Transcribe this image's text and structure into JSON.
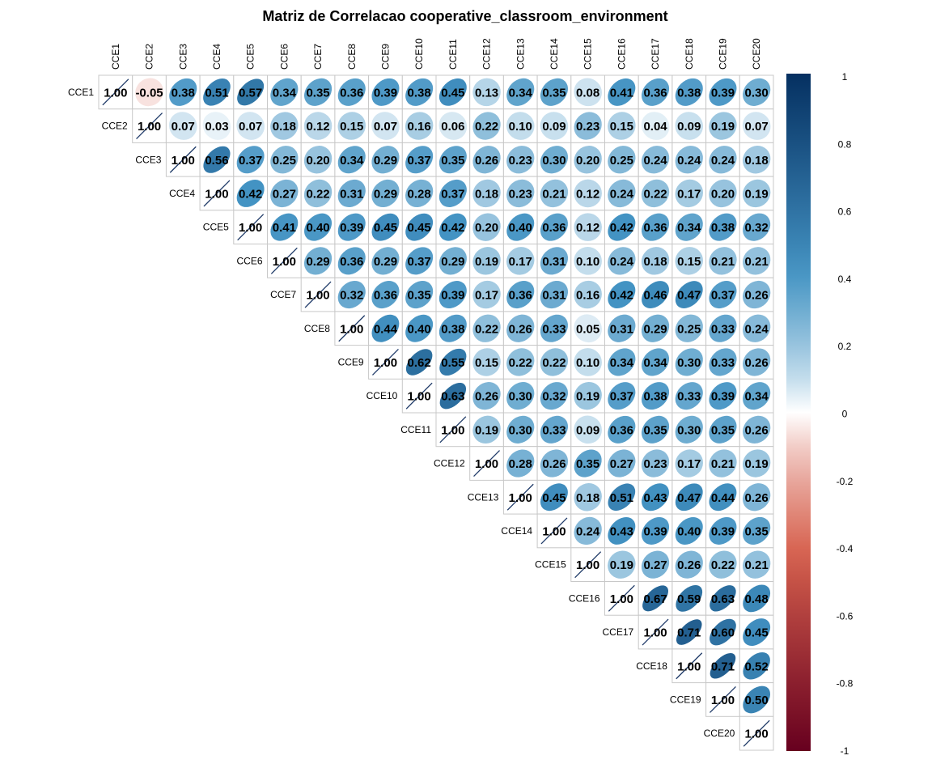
{
  "chart_data": {
    "type": "heatmap",
    "subtype": "correlation-matrix-upper-ellipse",
    "title": "Matriz de Correlacao  cooperative_classroom_environment",
    "variables": [
      "CCE1",
      "CCE2",
      "CCE3",
      "CCE4",
      "CCE5",
      "CCE6",
      "CCE7",
      "CCE8",
      "CCE9",
      "CCE10",
      "CCE11",
      "CCE12",
      "CCE13",
      "CCE14",
      "CCE15",
      "CCE16",
      "CCE17",
      "CCE18",
      "CCE19",
      "CCE20"
    ],
    "matrix_upper": [
      [
        "1.00",
        "-0.05",
        "0.38",
        "0.51",
        "0.57",
        "0.34",
        "0.35",
        "0.36",
        "0.39",
        "0.38",
        "0.45",
        "0.13",
        "0.34",
        "0.35",
        "0.08",
        "0.41",
        "0.36",
        "0.38",
        "0.39",
        "0.30"
      ],
      [
        "1.00",
        "0.07",
        "0.03",
        "0.07",
        "0.18",
        "0.12",
        "0.15",
        "0.07",
        "0.16",
        "0.06",
        "0.22",
        "0.10",
        "0.09",
        "0.23",
        "0.15",
        "0.04",
        "0.09",
        "0.19",
        "0.07"
      ],
      [
        "1.00",
        "0.56",
        "0.37",
        "0.25",
        "0.20",
        "0.34",
        "0.29",
        "0.37",
        "0.35",
        "0.26",
        "0.23",
        "0.30",
        "0.20",
        "0.25",
        "0.24",
        "0.24",
        "0.24",
        "0.18"
      ],
      [
        "1.00",
        "0.42",
        "0.27",
        "0.22",
        "0.31",
        "0.29",
        "0.28",
        "0.37",
        "0.18",
        "0.23",
        "0.21",
        "0.12",
        "0.24",
        "0.22",
        "0.17",
        "0.20",
        "0.19"
      ],
      [
        "1.00",
        "0.41",
        "0.40",
        "0.39",
        "0.45",
        "0.45",
        "0.42",
        "0.20",
        "0.40",
        "0.36",
        "0.12",
        "0.42",
        "0.36",
        "0.34",
        "0.38",
        "0.32"
      ],
      [
        "1.00",
        "0.29",
        "0.36",
        "0.29",
        "0.37",
        "0.29",
        "0.19",
        "0.17",
        "0.31",
        "0.10",
        "0.24",
        "0.18",
        "0.15",
        "0.21",
        "0.21"
      ],
      [
        "1.00",
        "0.32",
        "0.36",
        "0.35",
        "0.39",
        "0.17",
        "0.36",
        "0.31",
        "0.16",
        "0.42",
        "0.46",
        "0.47",
        "0.37",
        "0.26"
      ],
      [
        "1.00",
        "0.44",
        "0.40",
        "0.38",
        "0.22",
        "0.26",
        "0.33",
        "0.05",
        "0.31",
        "0.29",
        "0.25",
        "0.33",
        "0.24"
      ],
      [
        "1.00",
        "0.62",
        "0.55",
        "0.15",
        "0.22",
        "0.22",
        "0.10",
        "0.34",
        "0.34",
        "0.30",
        "0.33",
        "0.26"
      ],
      [
        "1.00",
        "0.63",
        "0.26",
        "0.30",
        "0.32",
        "0.19",
        "0.37",
        "0.38",
        "0.33",
        "0.39",
        "0.34"
      ],
      [
        "1.00",
        "0.19",
        "0.30",
        "0.33",
        "0.09",
        "0.36",
        "0.35",
        "0.30",
        "0.35",
        "0.26"
      ],
      [
        "1.00",
        "0.28",
        "0.26",
        "0.35",
        "0.27",
        "0.23",
        "0.17",
        "0.21",
        "0.19"
      ],
      [
        "1.00",
        "0.45",
        "0.18",
        "0.51",
        "0.43",
        "0.47",
        "0.44",
        "0.26"
      ],
      [
        "1.00",
        "0.24",
        "0.43",
        "0.39",
        "0.40",
        "0.39",
        "0.35"
      ],
      [
        "1.00",
        "0.19",
        "0.27",
        "0.26",
        "0.22",
        "0.21"
      ],
      [
        "1.00",
        "0.67",
        "0.59",
        "0.63",
        "0.48"
      ],
      [
        "1.00",
        "0.71",
        "0.60",
        "0.45"
      ],
      [
        "1.00",
        "0.71",
        "0.52"
      ],
      [
        "1.00",
        "0.50"
      ],
      [
        "1.00"
      ]
    ],
    "colorbar": {
      "range": [
        -1,
        1
      ],
      "tick_labels": [
        "1",
        "0.8",
        "0.6",
        "0.4",
        "0.2",
        "0",
        "-0.2",
        "-0.4",
        "-0.6",
        "-0.8",
        "-1"
      ],
      "colors": {
        "negative_strong": "#67001f",
        "negative_mid": "#d6604d",
        "neutral": "#ffffff",
        "positive_mid": "#4393c3",
        "positive_strong": "#053061"
      }
    },
    "legend_placement": "right",
    "grid": true
  }
}
